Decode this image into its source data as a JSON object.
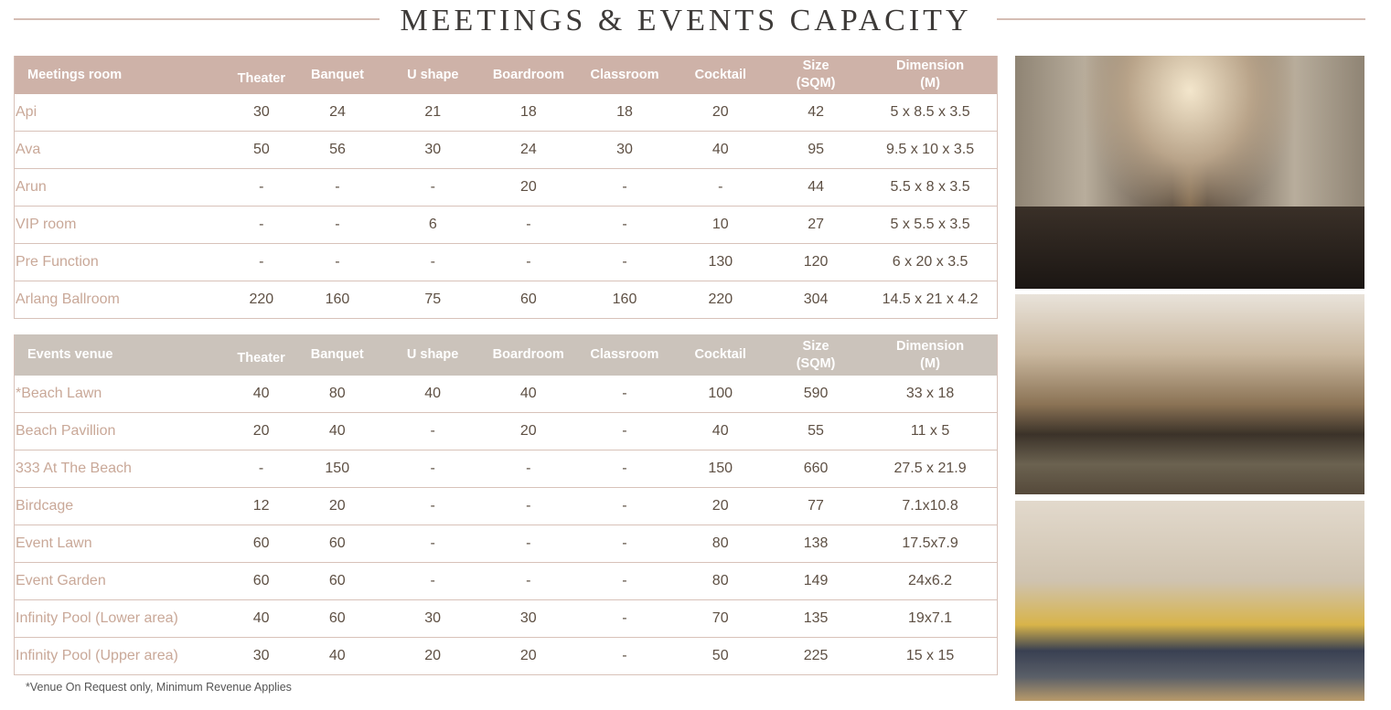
{
  "title": "MEETINGS & EVENTS CAPACITY",
  "colors": {
    "meetings_header": "#ceb2a8",
    "events_header": "#cbc3bb",
    "room_name": "#c9a898"
  },
  "meetings": {
    "headers": [
      "Meetings room",
      "Theater",
      "Banquet",
      "U shape",
      "Boardroom",
      "Classroom",
      "Cocktail",
      "Size (SQM)",
      "Dimension (M)"
    ],
    "rows": [
      [
        "Api",
        "30",
        "24",
        "21",
        "18",
        "18",
        "20",
        "42",
        "5 x 8.5 x 3.5"
      ],
      [
        "Ava",
        "50",
        "56",
        "30",
        "24",
        "30",
        "40",
        "95",
        "9.5 x 10 x 3.5"
      ],
      [
        "Arun",
        "-",
        "-",
        "-",
        "20",
        "-",
        "-",
        "44",
        "5.5 x 8 x 3.5"
      ],
      [
        "VIP room",
        "-",
        "-",
        "6",
        "-",
        "-",
        "10",
        "27",
        "5 x 5.5 x 3.5"
      ],
      [
        "Pre Function",
        "-",
        "-",
        "-",
        "-",
        "-",
        "130",
        "120",
        "6 x 20 x 3.5"
      ],
      [
        "Arlang Ballroom",
        "220",
        "160",
        "75",
        "60",
        "160",
        "220",
        "304",
        "14.5 x 21 x 4.2"
      ]
    ]
  },
  "events": {
    "headers": [
      "Events venue",
      "Theater",
      "Banquet",
      "U shape",
      "Boardroom",
      "Classroom",
      "Cocktail",
      "Size (SQM)",
      "Dimension (M)"
    ],
    "rows": [
      [
        "*Beach Lawn",
        "40",
        "80",
        "40",
        "40",
        "-",
        "100",
        "590",
        "33 x 18"
      ],
      [
        "Beach Pavillion",
        "20",
        "40",
        "-",
        "20",
        "-",
        "40",
        "55",
        "11 x 5"
      ],
      [
        "333 At The Beach",
        "-",
        "150",
        "-",
        "-",
        "-",
        "150",
        "660",
        "27.5 x 21.9"
      ],
      [
        "Birdcage",
        "12",
        "20",
        "-",
        "-",
        "-",
        "20",
        "77",
        "7.1x10.8"
      ],
      [
        "Event Lawn",
        "60",
        "60",
        "-",
        "-",
        "-",
        "80",
        "138",
        "17.5x7.9"
      ],
      [
        "Event Garden",
        "60",
        "60",
        "-",
        "-",
        "-",
        "80",
        "149",
        "24x6.2"
      ],
      [
        "Infinity Pool  (Lower area)",
        "40",
        "60",
        "30",
        "30",
        "-",
        "70",
        "135",
        "19x7.1"
      ],
      [
        "Infinity Pool  (Upper area)",
        "30",
        "40",
        "20",
        "20",
        "-",
        "50",
        "225",
        "15 x 15"
      ]
    ]
  },
  "footnote": "*Venue On Request only, Minimum Revenue Applies"
}
